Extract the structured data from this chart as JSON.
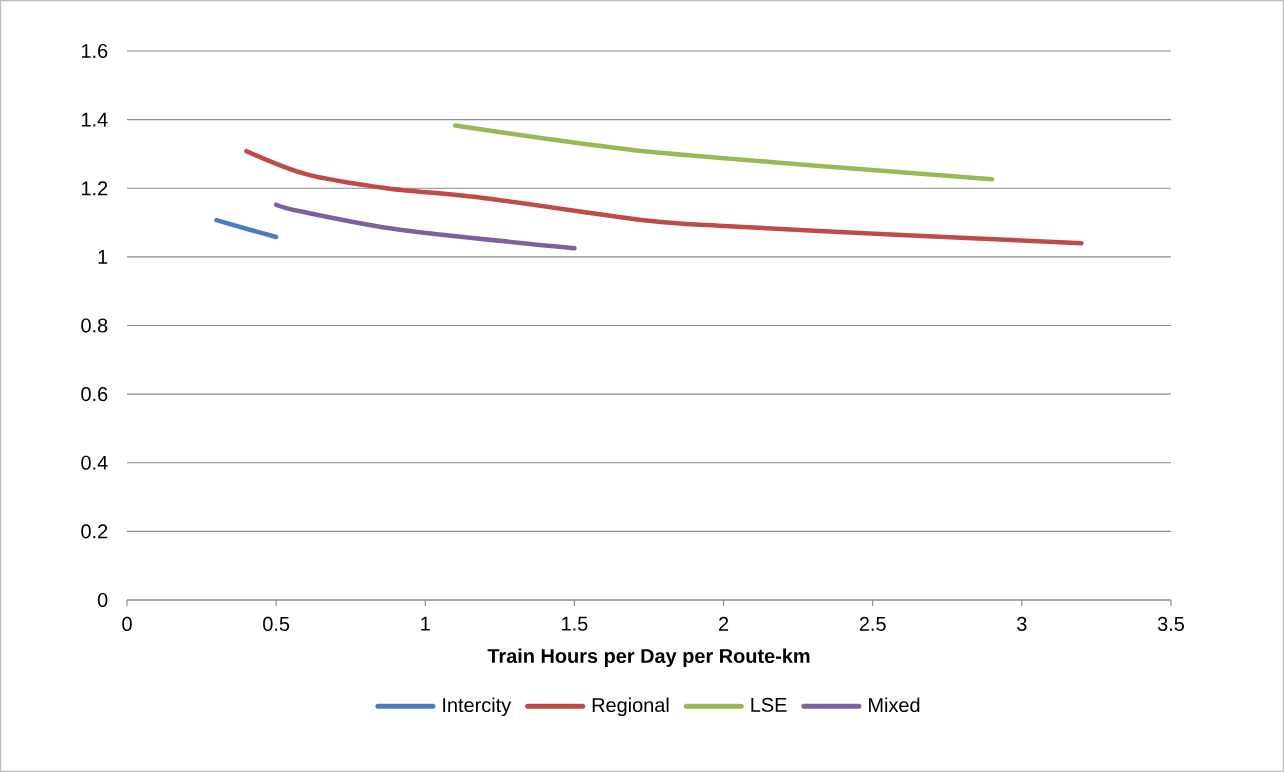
{
  "chart_data": {
    "type": "line",
    "xlabel": "Train Hours per Day per Route-km",
    "xlim": [
      0,
      3.5
    ],
    "xticks": [
      0,
      0.5,
      1,
      1.5,
      2,
      2.5,
      3,
      3.5
    ],
    "ylim": [
      0,
      1.6
    ],
    "yticks": [
      0,
      0.2,
      0.4,
      0.6,
      0.8,
      1,
      1.2,
      1.4,
      1.6
    ],
    "grid": "y",
    "legend": "bottom",
    "marker": "none",
    "line_style": "solid",
    "series": [
      {
        "name": "Intercity",
        "color": "#4a7ebb",
        "x": [
          0.3,
          0.4,
          0.5
        ],
        "values": [
          1.107,
          1.082,
          1.058
        ]
      },
      {
        "name": "Regional",
        "color": "#be4b48",
        "x": [
          0.4,
          0.6,
          0.87,
          1.2,
          1.75,
          2.0,
          2.56,
          3.2
        ],
        "values": [
          1.308,
          1.241,
          1.2,
          1.171,
          1.105,
          1.09,
          1.065,
          1.04
        ]
      },
      {
        "name": "LSE",
        "color": "#98b954",
        "x": [
          1.1,
          1.4,
          1.75,
          2.28,
          2.9
        ],
        "values": [
          1.383,
          1.345,
          1.306,
          1.268,
          1.226
        ]
      },
      {
        "name": "Mixed",
        "color": "#7d60a0",
        "x": [
          0.5,
          0.58,
          0.915,
          1.5
        ],
        "values": [
          1.152,
          1.133,
          1.079,
          1.025
        ]
      }
    ]
  }
}
